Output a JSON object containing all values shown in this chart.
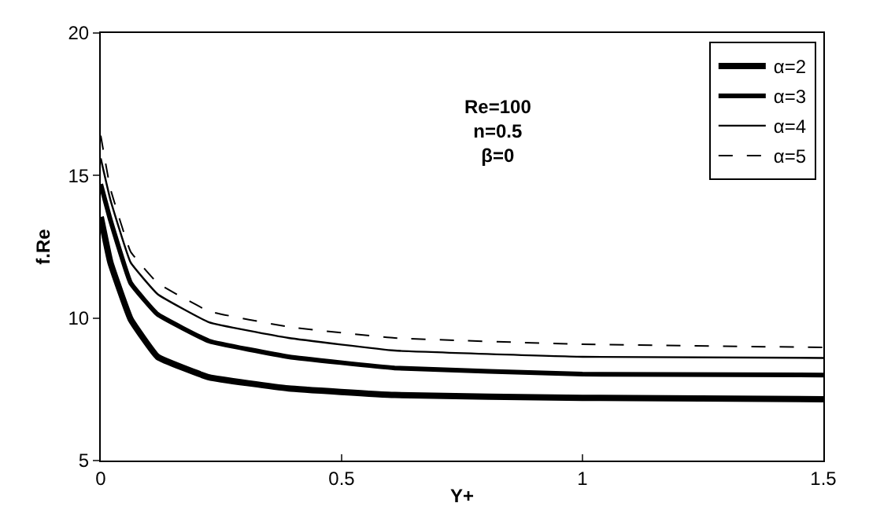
{
  "chart_data": {
    "type": "line",
    "xlabel": "Y+",
    "ylabel": "f.Re",
    "annotations": [
      "Re=100\nn=0.5\nβ=0"
    ],
    "x": [
      0,
      0.02,
      0.062,
      0.118,
      0.225,
      0.39,
      0.61,
      1.0,
      1.5
    ],
    "series": [
      {
        "name": "α=2",
        "color": "#000000",
        "values": [
          13.55,
          11.95,
          9.96,
          8.64,
          7.92,
          7.53,
          7.3,
          7.2,
          7.15
        ]
      },
      {
        "name": "α=3",
        "color": "#000000",
        "values": [
          14.7,
          13.44,
          11.23,
          10.13,
          9.19,
          8.64,
          8.25,
          8.03,
          8.0
        ]
      },
      {
        "name": "α=4",
        "color": "#000000",
        "values": [
          15.6,
          14.15,
          11.95,
          10.84,
          9.85,
          9.3,
          8.86,
          8.64,
          8.6
        ]
      },
      {
        "name": "α=5",
        "color": "#000000",
        "line_style": "dashed",
        "values": [
          16.4,
          14.54,
          12.33,
          11.23,
          10.24,
          9.69,
          9.3,
          9.08,
          8.97
        ]
      }
    ],
    "xlim": [
      0,
      1.5
    ],
    "xticks": [
      0,
      0.5,
      1,
      1.5
    ],
    "ylim": [
      5,
      20
    ],
    "yticks": [
      5,
      10,
      15,
      20
    ],
    "grid": false,
    "legend": "top right",
    "marker": "none",
    "line_style": "solid"
  }
}
